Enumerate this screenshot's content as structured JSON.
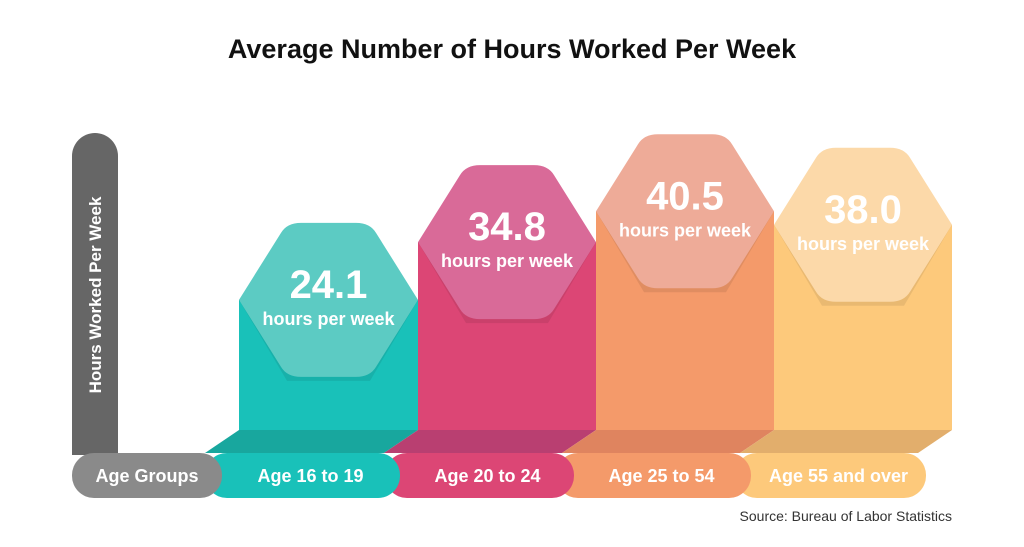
{
  "chart_data": {
    "type": "bar",
    "title": "Average Number of Hours Worked Per Week",
    "ylabel": "Hours Worked Per Week",
    "xlabel": "Age Groups",
    "categories": [
      "Age 16 to 19",
      "Age 20 to 24",
      "Age 25 to 54",
      "Age 55 and over"
    ],
    "values": [
      24.1,
      34.8,
      40.5,
      38.0
    ],
    "value_labels": [
      "24.1",
      "34.8",
      "40.5",
      "38.0"
    ],
    "unit_label": "hours per week",
    "colors": [
      {
        "bar": "#19c1b9",
        "hex": "#5ccbc3",
        "floor": "#18a79e"
      },
      {
        "bar": "#dc4675",
        "hex": "#d96a98",
        "floor": "#b93f71"
      },
      {
        "bar": "#f49a6a",
        "hex": "#eeab98",
        "floor": "#df845f"
      },
      {
        "bar": "#fdc97b",
        "hex": "#fcd9a9",
        "floor": "#e2ae6c"
      }
    ],
    "axis_color": "#666666",
    "xlabel_color": "#8a8a8a"
  },
  "source": "Source: Bureau of Labor Statistics"
}
